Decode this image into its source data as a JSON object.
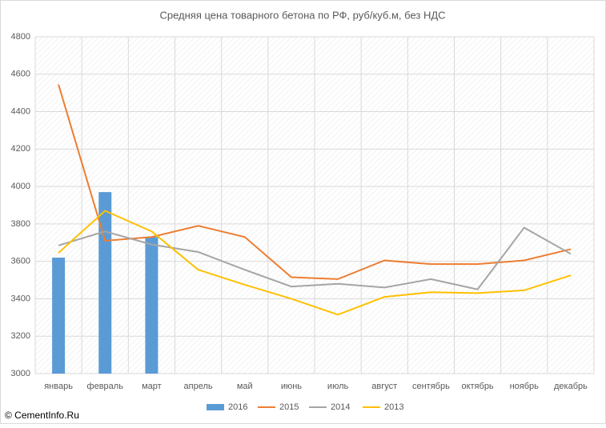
{
  "chart_data": {
    "type": "bar",
    "title": "Средняя цена товарного бетона по РФ, руб/куб.м, без НДС",
    "source": "© CementInfo.Ru",
    "categories": [
      "январь",
      "февраль",
      "март",
      "апрель",
      "май",
      "июнь",
      "июль",
      "август",
      "сентябрь",
      "октябрь",
      "ноябрь",
      "декабрь"
    ],
    "series": [
      {
        "name": "2016",
        "type": "bar",
        "color": "#5b9bd5",
        "values": [
          3620,
          3970,
          3730,
          null,
          null,
          null,
          null,
          null,
          null,
          null,
          null,
          null
        ]
      },
      {
        "name": "2015",
        "type": "line",
        "color": "#ed7d31",
        "values": [
          4545,
          3710,
          3730,
          3790,
          3730,
          3515,
          3505,
          3605,
          3585,
          3585,
          3605,
          3665
        ]
      },
      {
        "name": "2014",
        "type": "line",
        "color": "#a5a5a5",
        "values": [
          3685,
          3760,
          3690,
          3650,
          3555,
          3465,
          3480,
          3460,
          3505,
          3450,
          3780,
          3640
        ]
      },
      {
        "name": "2013",
        "type": "line",
        "color": "#ffc000",
        "values": [
          3645,
          3870,
          3760,
          3555,
          3475,
          3400,
          3315,
          3410,
          3435,
          3430,
          3445,
          3525
        ]
      }
    ],
    "ylim": [
      3000,
      4800
    ],
    "yticks": [
      3000,
      3200,
      3400,
      3600,
      3800,
      4000,
      4200,
      4400,
      4600,
      4800
    ],
    "grid": true,
    "legend": "bottom"
  }
}
